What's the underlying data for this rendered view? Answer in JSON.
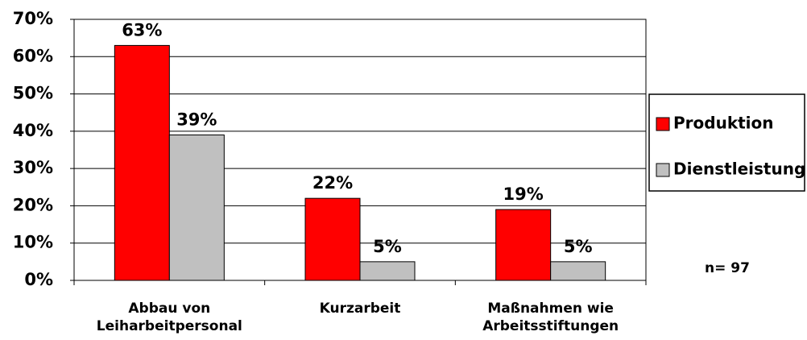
{
  "chart_data": {
    "type": "bar",
    "categories": [
      "Abbau von\nLeiharbeitpersonal",
      "Kurzarbeit",
      "Maßnahmen wie\nArbeitsstiftungen"
    ],
    "series": [
      {
        "name": "Produktion",
        "color": "#ff0000",
        "values": [
          63,
          22,
          19
        ],
        "value_labels": [
          "63%",
          "22%",
          "19%"
        ]
      },
      {
        "name": "Dienstleistung",
        "color": "#c0c0c0",
        "values": [
          39,
          5,
          5
        ],
        "value_labels": [
          "39%",
          "5%",
          "5%"
        ]
      }
    ],
    "ylim": [
      0,
      70
    ],
    "yticks": [
      {
        "value": 0,
        "label": "0%"
      },
      {
        "value": 10,
        "label": "10%"
      },
      {
        "value": 20,
        "label": "20%"
      },
      {
        "value": 30,
        "label": "30%"
      },
      {
        "value": 40,
        "label": "40%"
      },
      {
        "value": 50,
        "label": "50%"
      },
      {
        "value": 60,
        "label": "60%"
      },
      {
        "value": 70,
        "label": "70%"
      }
    ],
    "grid": true,
    "legend": "right",
    "annotation": "n= 97"
  }
}
